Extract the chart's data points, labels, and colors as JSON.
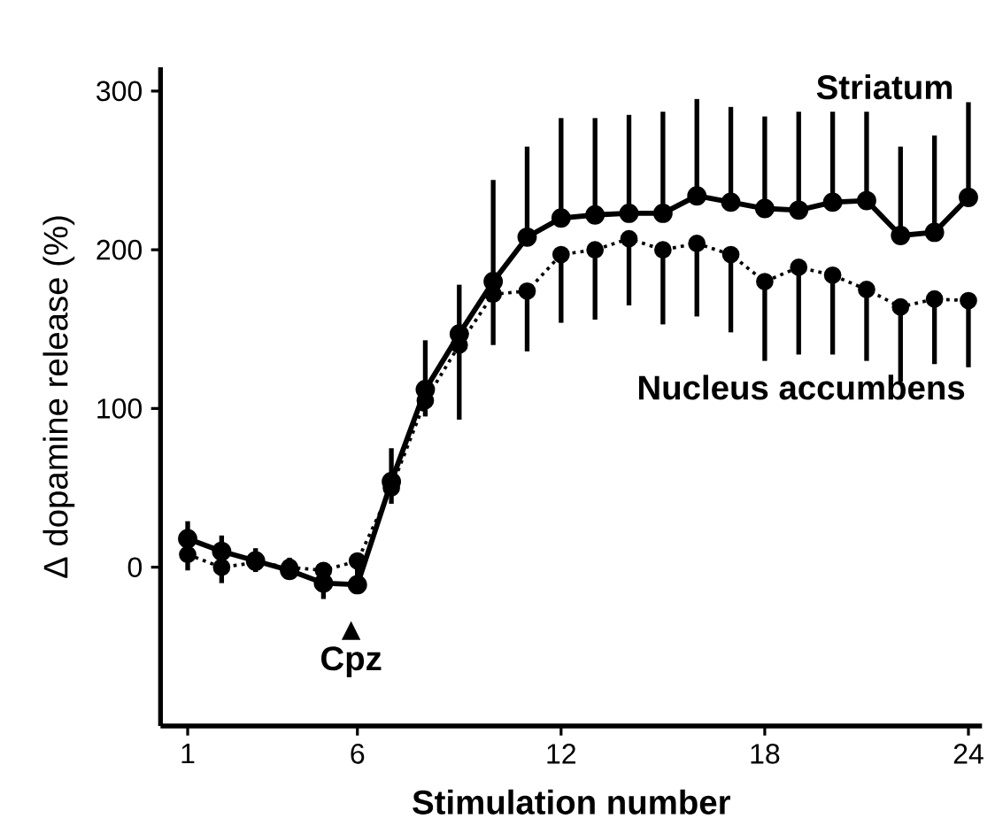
{
  "chart_data": {
    "type": "line",
    "xlabel": "Stimulation number",
    "ylabel": "Δ dopamine release (%)",
    "x": [
      1,
      2,
      3,
      4,
      5,
      6,
      7,
      8,
      9,
      10,
      11,
      12,
      13,
      14,
      15,
      16,
      17,
      18,
      19,
      20,
      21,
      22,
      23,
      24
    ],
    "series": [
      {
        "name": "Striatum",
        "color": "#000000",
        "line_style": "solid",
        "values": [
          18,
          10,
          4,
          -2,
          -10,
          -11,
          54,
          112,
          147,
          180,
          208,
          220,
          222,
          223,
          223,
          234,
          230,
          226,
          225,
          230,
          231,
          209,
          211,
          233
        ],
        "errors": [
          [
            18,
            29
          ],
          [
            10,
            20
          ],
          [
            4,
            12
          ],
          [
            -2,
            6
          ],
          [
            -10,
            0
          ],
          [
            -11,
            -1
          ],
          [
            54,
            75
          ],
          [
            112,
            143
          ],
          [
            147,
            178
          ],
          [
            180,
            244
          ],
          [
            208,
            265
          ],
          [
            220,
            283
          ],
          [
            222,
            283
          ],
          [
            223,
            285
          ],
          [
            223,
            287
          ],
          [
            234,
            295
          ],
          [
            230,
            290
          ],
          [
            226,
            284
          ],
          [
            225,
            287
          ],
          [
            230,
            287
          ],
          [
            231,
            287
          ],
          [
            209,
            265
          ],
          [
            211,
            272
          ],
          [
            233,
            293
          ]
        ]
      },
      {
        "name": "Nucleus accumbens",
        "color": "#000000",
        "line_style": "dotted",
        "values": [
          8,
          0,
          3,
          0,
          -2,
          4,
          50,
          105,
          140,
          172,
          174,
          197,
          200,
          207,
          200,
          204,
          197,
          180,
          189,
          184,
          175,
          164,
          169,
          168
        ],
        "errors": [
          [
            -2,
            8
          ],
          [
            -10,
            0
          ],
          [
            -3,
            3
          ],
          [
            -6,
            0
          ],
          [
            -20,
            -2
          ],
          [
            -6,
            4
          ],
          [
            40,
            50
          ],
          [
            95,
            105
          ],
          [
            93,
            140
          ],
          [
            140,
            172
          ],
          [
            136,
            174
          ],
          [
            154,
            197
          ],
          [
            156,
            200
          ],
          [
            165,
            207
          ],
          [
            153,
            200
          ],
          [
            158,
            204
          ],
          [
            148,
            197
          ],
          [
            130,
            180
          ],
          [
            134,
            189
          ],
          [
            134,
            184
          ],
          [
            130,
            175
          ],
          [
            117,
            164
          ],
          [
            128,
            169
          ],
          [
            126,
            168
          ]
        ]
      }
    ],
    "marker": "circle",
    "xlim": [
      0.2,
      24.4
    ],
    "ylim": [
      -100,
      315
    ],
    "xticks": [
      1,
      6,
      12,
      18,
      24
    ],
    "yticks": [
      0,
      100,
      200,
      300
    ],
    "annotations": [
      "Cpz"
    ]
  }
}
